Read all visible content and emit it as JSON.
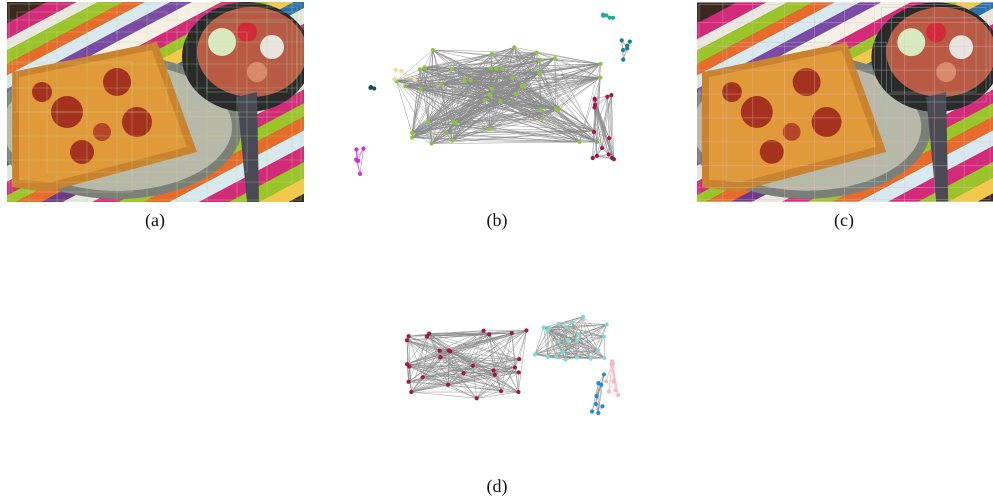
{
  "figure": {
    "panels": [
      {
        "id": "a",
        "label": "(a)",
        "kind": "photo-with-grid-overlay"
      },
      {
        "id": "b",
        "label": "(b)",
        "kind": "graph",
        "clusters": [
          {
            "color": "#8cc63f",
            "nodes": 46
          },
          {
            "color": "#a0194a",
            "nodes": 14
          },
          {
            "color": "#1a7f8a",
            "nodes": 6
          },
          {
            "color": "#22a99b",
            "nodes": 5
          },
          {
            "color": "#cc33cc",
            "nodes": 6
          },
          {
            "color": "#e7e1a0",
            "nodes": 4
          },
          {
            "color": "#154b57",
            "nodes": 3
          }
        ]
      },
      {
        "id": "c",
        "label": "(c)",
        "kind": "photo-with-grid-overlay"
      },
      {
        "id": "d",
        "label": "(d)",
        "kind": "graph",
        "clusters": [
          {
            "color": "#a01848",
            "nodes": 28
          },
          {
            "color": "#7fd9d6",
            "nodes": 22
          },
          {
            "color": "#1b8ed6",
            "nodes": 8
          },
          {
            "color": "#f3b8c8",
            "nodes": 8
          }
        ]
      }
    ]
  }
}
